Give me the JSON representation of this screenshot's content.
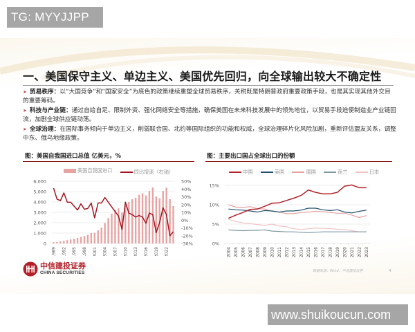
{
  "watermarks": {
    "top_left": "TG: MYYJJPP",
    "bottom_right": "www.shuikoucun.com"
  },
  "page": {
    "title": "一、美国保守主义、单边主义、美国优先回归，向全球输出较大不确定性",
    "bullets": [
      {
        "key": "贸易秩序：",
        "text": "以“大国竞争”和“国家安全”为底色的政策继续重塑全球贸易秩序，关税既是特朗普政府重要政策手段，也是其实现其他外交目的重要筹码。"
      },
      {
        "key": "科技与产业链：",
        "text": "通过自给自足、限制外资、强化网络安全等措施，确保美国在未来科技发展中的领先地位，以贸易手段迫使制造业产业链回流，加剧全球供应链动荡。"
      },
      {
        "key": "全球治理：",
        "text": "在国际事务倾向于单边主义，削弱联合国、北约等国际组织的功能和权威，全球治理碎片化风险加剧，重新评估盟友关系，调整中东、俄乌地缘政策。"
      }
    ],
    "source_note": "数据来源：Wind，中信建投证券",
    "page_number": "4",
    "logo": {
      "cn": "中信建投证券",
      "en": "CHINA SECURITIES"
    }
  },
  "colors": {
    "accent_red": "#b3202a",
    "bar_pink": "#e8a3a3",
    "line_dark_red": "#a3121f",
    "usa_navy": "#1f4e6b",
    "germany_pink": "#e3a0a0",
    "netherlands_gray": "#7f98a3",
    "japan_light": "#f0c2c2"
  },
  "chart_data": [
    {
      "type": "bar",
      "title": "图：美国自我国进口总值 亿美元，%",
      "legend": [
        "美国自我国进口",
        "同比增速（右轴）"
      ],
      "xlabel": "",
      "ylabel": "亿美元",
      "y2label": "%",
      "ylim": [
        0,
        6000
      ],
      "y2lim": [
        -30,
        50
      ],
      "yticks": [
        "0",
        "1,000",
        "2,000",
        "3,000",
        "4,000",
        "5,000",
        "6,000"
      ],
      "y2ticks": [
        "-30%",
        "-20%",
        "-10%",
        "0%",
        "10%",
        "20%",
        "30%",
        "40%",
        "50%"
      ],
      "xtick_labels": [
        "1989",
        "1992",
        "1995",
        "1998",
        "2001",
        "2004",
        "2007",
        "2010",
        "2013",
        "2016",
        "2019",
        "2022"
      ],
      "categories": [
        "1989",
        "1990",
        "1991",
        "1992",
        "1993",
        "1994",
        "1995",
        "1996",
        "1997",
        "1998",
        "1999",
        "2000",
        "2001",
        "2002",
        "2003",
        "2004",
        "2005",
        "2006",
        "2007",
        "2008",
        "2009",
        "2010",
        "2011",
        "2012",
        "2013",
        "2014",
        "2015",
        "2016",
        "2017",
        "2018",
        "2019",
        "2020",
        "2021",
        "2022",
        "2023",
        "2024"
      ],
      "series": [
        {
          "name": "美国自我国进口",
          "type": "bar",
          "values": [
            120,
            150,
            190,
            260,
            320,
            390,
            460,
            520,
            630,
            720,
            820,
            1000,
            1020,
            1260,
            1530,
            1970,
            2440,
            2880,
            3220,
            3380,
            2970,
            3650,
            4000,
            4260,
            4410,
            4690,
            4840,
            4630,
            5060,
            5400,
            4530,
            4360,
            5060,
            5370,
            4270,
            3600
          ]
        },
        {
          "name": "同比增速（右轴）",
          "type": "line",
          "axis": "right",
          "values": [
            41,
            27,
            25,
            35,
            23,
            23,
            18,
            13,
            21,
            14,
            15,
            22,
            3,
            22,
            22,
            29,
            23,
            17,
            11,
            5,
            -12,
            23,
            9,
            7,
            4,
            6,
            4,
            -4,
            9,
            7,
            -16,
            -3,
            16,
            7,
            -20,
            -15
          ]
        }
      ]
    },
    {
      "type": "line",
      "title": "图：主要出口国占全球出口的份额",
      "legend": [
        "中国",
        "美国",
        "德国",
        "荷兰",
        "日本"
      ],
      "xlabel": "",
      "ylabel": "",
      "ylim": [
        0,
        15
      ],
      "yticks": [
        "0%",
        "5%",
        "10%",
        "15%"
      ],
      "categories": [
        "2004",
        "2005",
        "2006",
        "2007",
        "2008",
        "2009",
        "2010",
        "2011",
        "2012",
        "2013",
        "2014",
        "2015",
        "2016",
        "2017",
        "2018",
        "2019",
        "2020",
        "2021",
        "2022",
        "2023"
      ],
      "series": [
        {
          "name": "中国",
          "values": [
            6.5,
            7.3,
            8.0,
            8.8,
            8.9,
            9.6,
            10.4,
            10.5,
            11.1,
            11.7,
            12.4,
            13.8,
            13.2,
            12.8,
            12.8,
            13.2,
            14.8,
            15.1,
            14.4,
            14.4
          ]
        },
        {
          "name": "美国",
          "values": [
            8.9,
            8.7,
            8.6,
            8.4,
            8.1,
            8.5,
            8.4,
            8.1,
            8.4,
            8.4,
            8.6,
            9.1,
            9.1,
            8.7,
            8.5,
            8.7,
            8.1,
            7.9,
            8.3,
            8.6
          ]
        },
        {
          "name": "德国",
          "values": [
            10.0,
            9.4,
            9.3,
            9.5,
            9.0,
            8.9,
            8.3,
            8.1,
            7.7,
            7.7,
            8.0,
            8.1,
            8.3,
            8.2,
            8.0,
            7.8,
            7.8,
            7.3,
            6.7,
            7.2
          ]
        },
        {
          "name": "荷兰",
          "values": [
            3.5,
            3.4,
            3.3,
            3.4,
            3.4,
            3.5,
            3.2,
            3.1,
            3.0,
            3.0,
            2.9,
            2.8,
            2.9,
            3.0,
            3.0,
            3.0,
            3.0,
            3.0,
            3.0,
            3.0
          ]
        },
        {
          "name": "日本",
          "values": [
            6.2,
            5.7,
            5.3,
            5.1,
            4.9,
            4.6,
            5.0,
            4.5,
            4.3,
            3.8,
            3.6,
            3.8,
            4.0,
            3.9,
            3.8,
            3.7,
            3.6,
            3.3,
            3.0,
            3.0
          ]
        }
      ]
    }
  ]
}
